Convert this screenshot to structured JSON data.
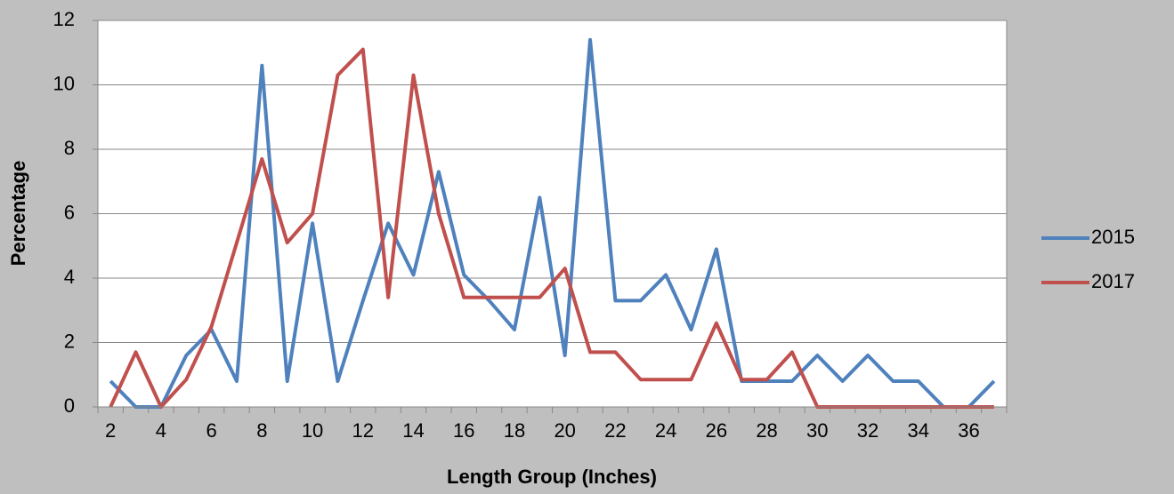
{
  "chart_data": {
    "type": "line",
    "x_label": "Length Group (Inches)",
    "y_label": "Percentage",
    "categories": [
      "2",
      null,
      "4",
      null,
      "6",
      null,
      "8",
      null,
      "10",
      null,
      "12",
      null,
      "14",
      null,
      "16",
      null,
      "18",
      null,
      "20",
      null,
      "22",
      null,
      "24",
      null,
      "26",
      null,
      "28",
      null,
      "30",
      null,
      "32",
      null,
      "34",
      null,
      "36",
      null
    ],
    "series": [
      {
        "name": "2015",
        "color": "#4f81bd",
        "values": [
          0.8,
          0,
          0,
          1.6,
          2.4,
          0.8,
          10.6,
          0.8,
          5.7,
          0.8,
          3.3,
          5.7,
          4.1,
          7.3,
          4.1,
          3.3,
          2.4,
          6.5,
          1.6,
          11.4,
          3.3,
          3.3,
          4.1,
          2.4,
          4.9,
          0.8,
          0.8,
          0.8,
          1.6,
          0.8,
          1.6,
          0.8,
          0.8,
          0,
          0,
          0.8
        ]
      },
      {
        "name": "2017",
        "color": "#c0504d",
        "values": [
          0,
          1.7,
          0,
          0.85,
          2.5,
          5.1,
          7.7,
          5.1,
          6.0,
          10.3,
          11.1,
          3.4,
          10.3,
          6.0,
          3.4,
          3.4,
          3.4,
          3.4,
          4.3,
          1.7,
          1.7,
          0.85,
          0.85,
          0.85,
          2.6,
          0.85,
          0.85,
          1.7,
          0,
          0,
          0,
          0,
          0,
          0,
          0,
          0
        ]
      }
    ],
    "ylim": [
      0,
      12
    ],
    "yticks": [
      0,
      2,
      4,
      6,
      8,
      10,
      12
    ],
    "grid": true,
    "legend": "right"
  }
}
